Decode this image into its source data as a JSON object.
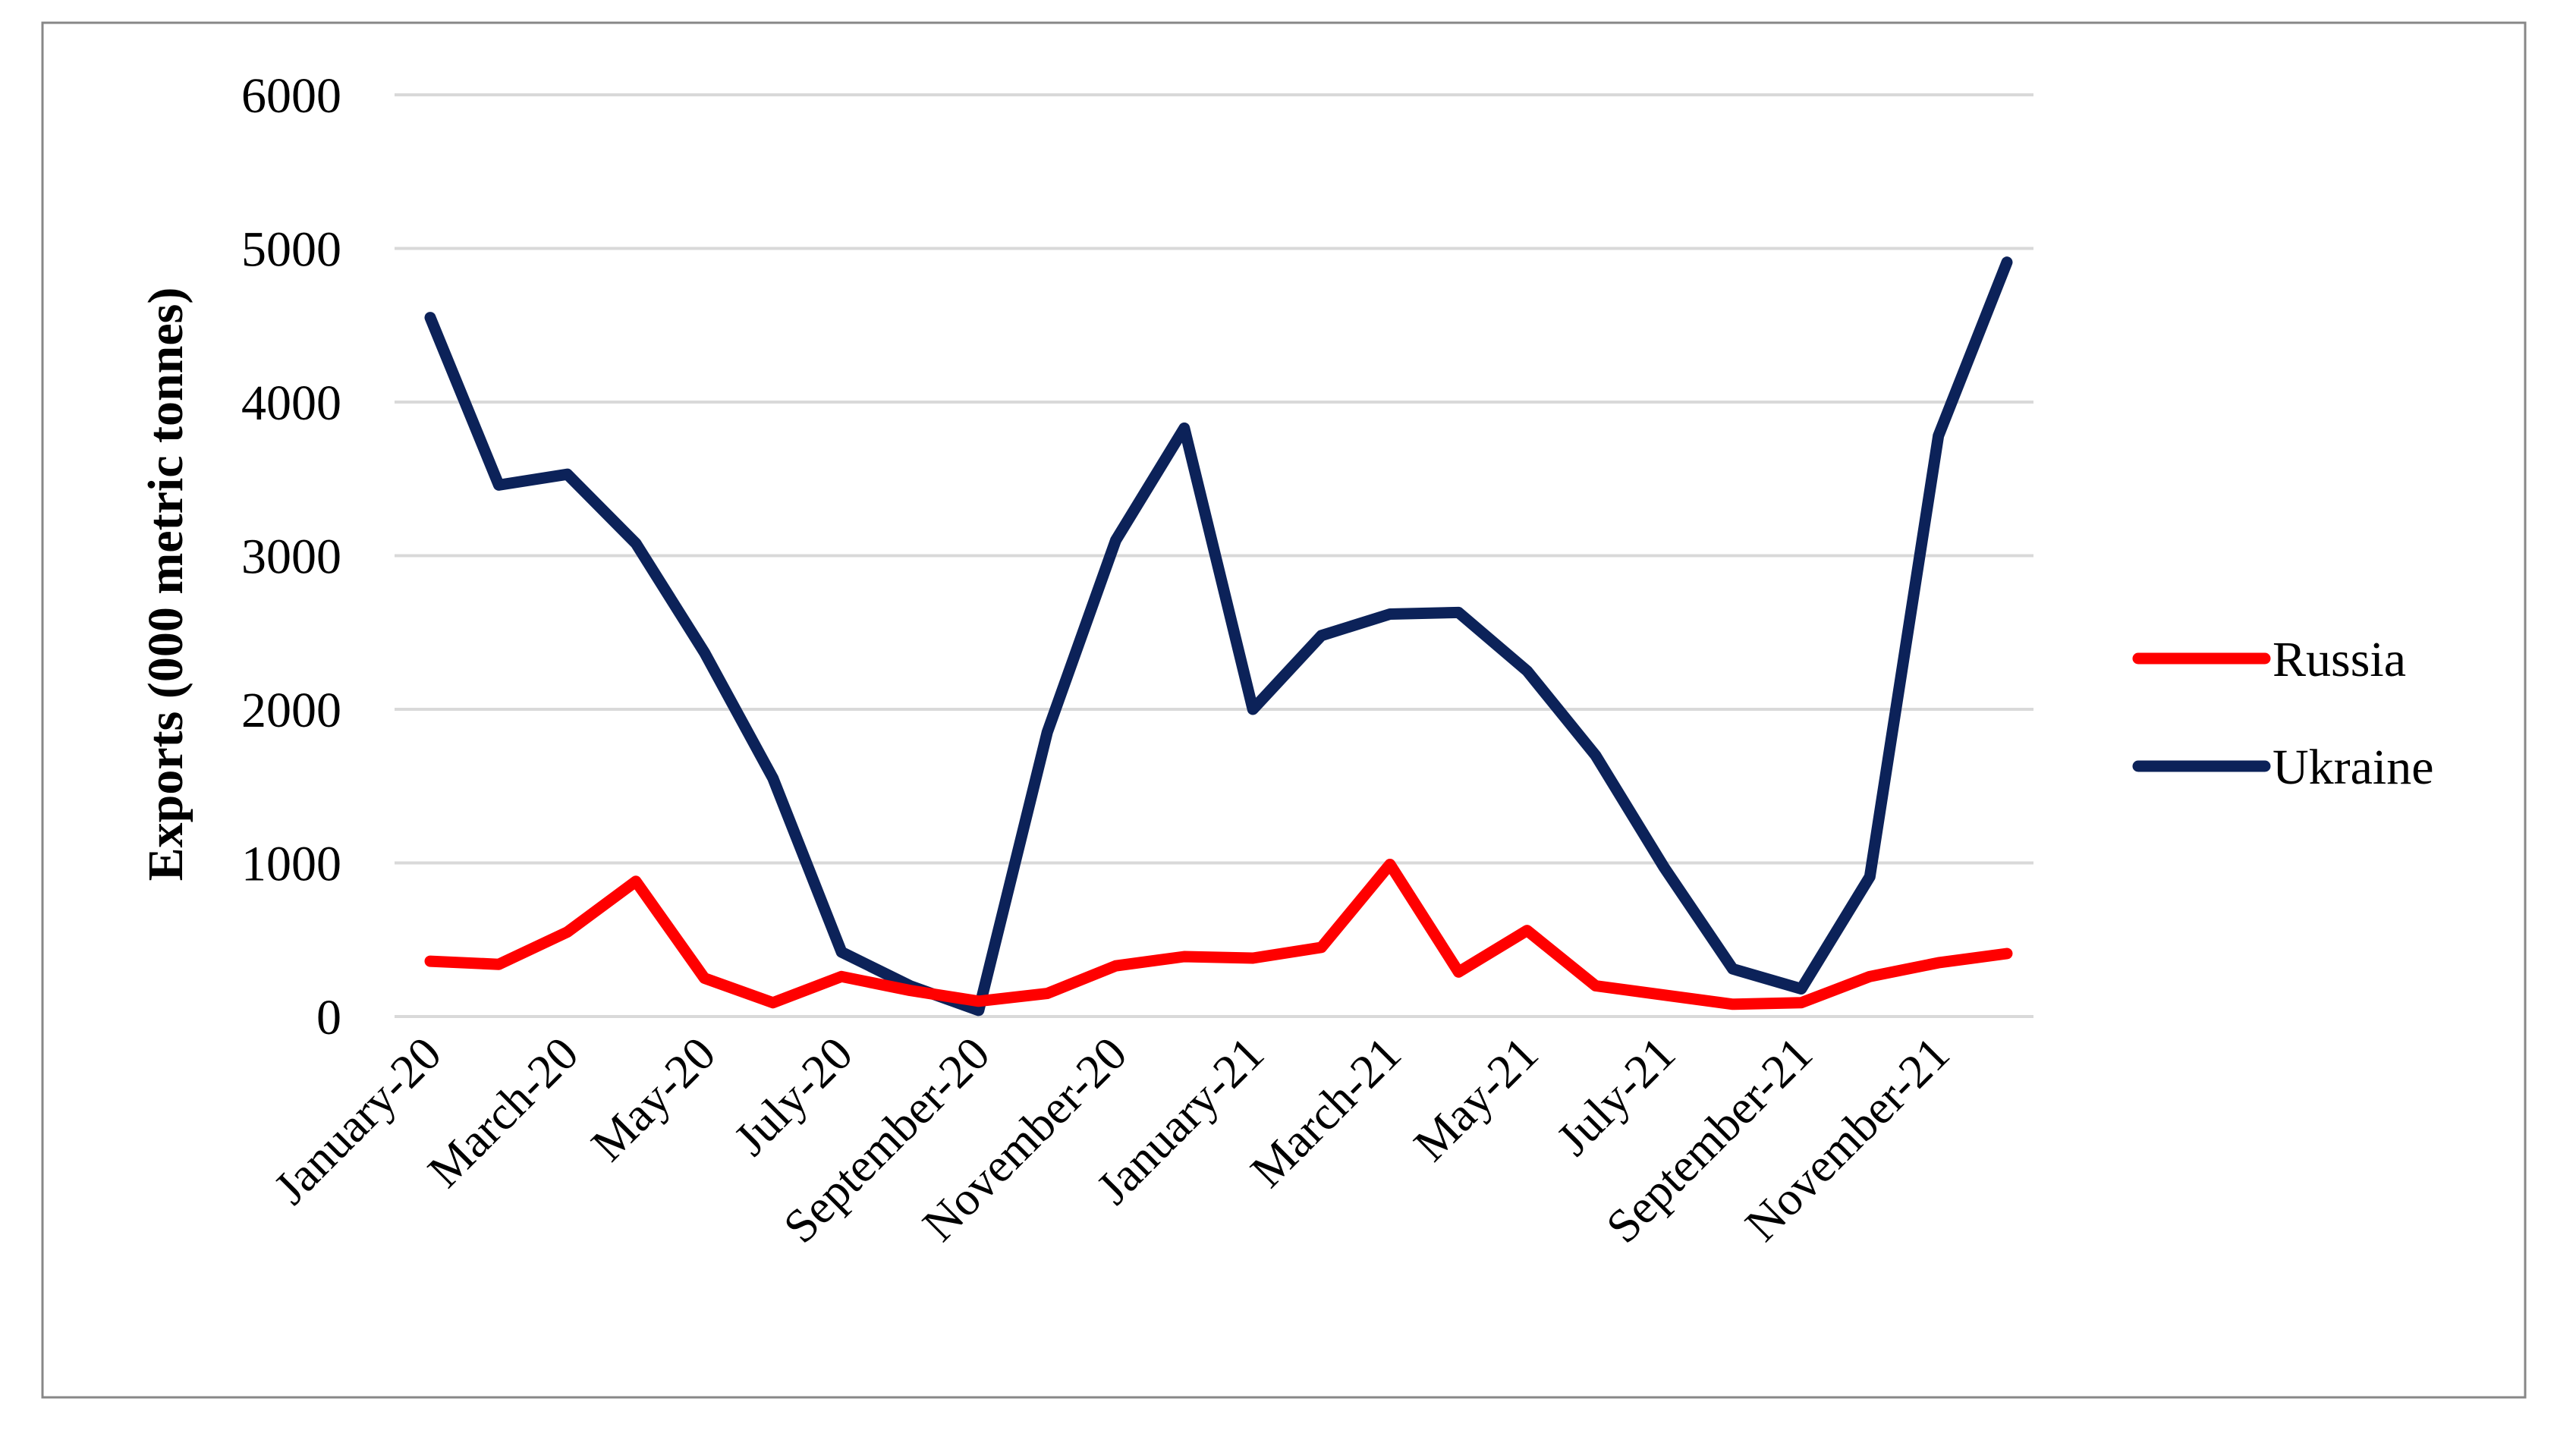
{
  "chart_data": {
    "type": "line",
    "ylabel": "Exports (000 metric tonnes)",
    "xlabel": "",
    "ylim": [
      0,
      6000
    ],
    "yticks": [
      "0",
      "1000",
      "2000",
      "3000",
      "4000",
      "5000",
      "6000"
    ],
    "ytick_values": [
      0,
      1000,
      2000,
      3000,
      4000,
      5000,
      6000
    ],
    "x": [
      "January-20",
      "February-20",
      "March-20",
      "April-20",
      "May-20",
      "June-20",
      "July-20",
      "August-20",
      "September-20",
      "October-20",
      "November-20",
      "December-20",
      "January-21",
      "February-21",
      "March-21",
      "April-21",
      "May-21",
      "June-21",
      "July-21",
      "August-21",
      "September-21",
      "October-21",
      "November-21",
      "December-21"
    ],
    "xtick_labels": [
      "January-20",
      "March-20",
      "May-20",
      "July-20",
      "September-20",
      "November-20",
      "January-21",
      "March-21",
      "May-21",
      "July-21",
      "September-21",
      "November-21"
    ],
    "series": [
      {
        "name": "Russia",
        "color": "#ff0000",
        "values": [
          360,
          340,
          550,
          880,
          250,
          90,
          260,
          170,
          100,
          150,
          330,
          390,
          380,
          450,
          990,
          290,
          560,
          200,
          140,
          80,
          90,
          260,
          350,
          410
        ]
      },
      {
        "name": "Ukraine",
        "color": "#0c2259",
        "values": [
          4550,
          3460,
          3530,
          3080,
          2370,
          1550,
          420,
          200,
          40,
          1850,
          3100,
          3830,
          2000,
          2480,
          2620,
          2630,
          2250,
          1700,
          970,
          310,
          180,
          910,
          3780,
          4910
        ]
      }
    ],
    "legend": {
      "placement": "right"
    },
    "grid": {
      "y": true,
      "x": false
    }
  }
}
